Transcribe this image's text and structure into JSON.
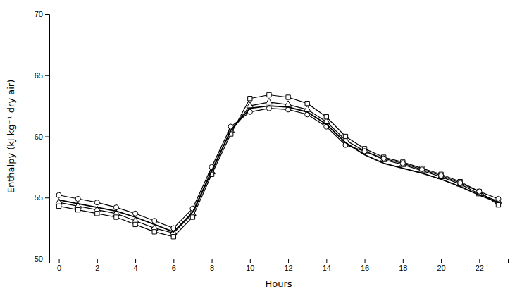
{
  "chart_data": {
    "type": "line",
    "xlabel": "Hours",
    "ylabel": "Enthalpy (kJ kg⁻¹ dry air)",
    "x": [
      0,
      1,
      2,
      3,
      4,
      5,
      6,
      7,
      8,
      9,
      10,
      11,
      12,
      13,
      14,
      15,
      16,
      17,
      18,
      19,
      20,
      21,
      22,
      23
    ],
    "series": [
      {
        "color": "#000000",
        "line_style": "solid",
        "values": [
          54.8,
          54.5,
          54.2,
          53.9,
          53.4,
          52.8,
          52.2,
          53.8,
          57.2,
          60.5,
          62.3,
          62.5,
          62.4,
          62.0,
          61.0,
          59.5,
          58.5,
          57.8,
          57.4,
          57.0,
          56.5,
          55.9,
          55.2,
          54.6
        ]
      },
      {
        "color": "#000000",
        "line_style": "solid",
        "marker": "circle",
        "values": [
          55.2,
          54.9,
          54.6,
          54.2,
          53.7,
          53.1,
          52.5,
          54.1,
          57.5,
          60.8,
          62.0,
          62.3,
          62.2,
          61.8,
          60.8,
          59.3,
          58.8,
          58.2,
          57.8,
          57.3,
          56.8,
          56.2,
          55.5,
          54.9
        ]
      },
      {
        "color": "#000000",
        "line_style": "solid",
        "marker": "square",
        "values": [
          54.3,
          54.0,
          53.7,
          53.4,
          52.8,
          52.2,
          51.8,
          53.4,
          56.9,
          60.2,
          63.1,
          63.4,
          63.2,
          62.7,
          61.6,
          60.0,
          59.0,
          58.3,
          57.9,
          57.4,
          56.9,
          56.3,
          55.5,
          54.4
        ]
      },
      {
        "color": "#000000",
        "line_style": "solid",
        "marker": "triangle",
        "values": [
          54.6,
          54.3,
          54.0,
          53.7,
          53.1,
          52.5,
          52.1,
          53.7,
          57.1,
          60.5,
          62.5,
          62.8,
          62.6,
          62.2,
          61.2,
          59.7,
          58.8,
          58.1,
          57.7,
          57.2,
          56.7,
          56.1,
          55.3,
          54.7
        ]
      }
    ],
    "xlim": [
      -0.5,
      23.5
    ],
    "ylim": [
      50,
      70
    ],
    "xticks": [
      0,
      2,
      4,
      6,
      8,
      10,
      12,
      14,
      16,
      18,
      20,
      22
    ],
    "yticks": [
      50,
      55,
      60,
      65,
      70
    ],
    "grid": false
  }
}
